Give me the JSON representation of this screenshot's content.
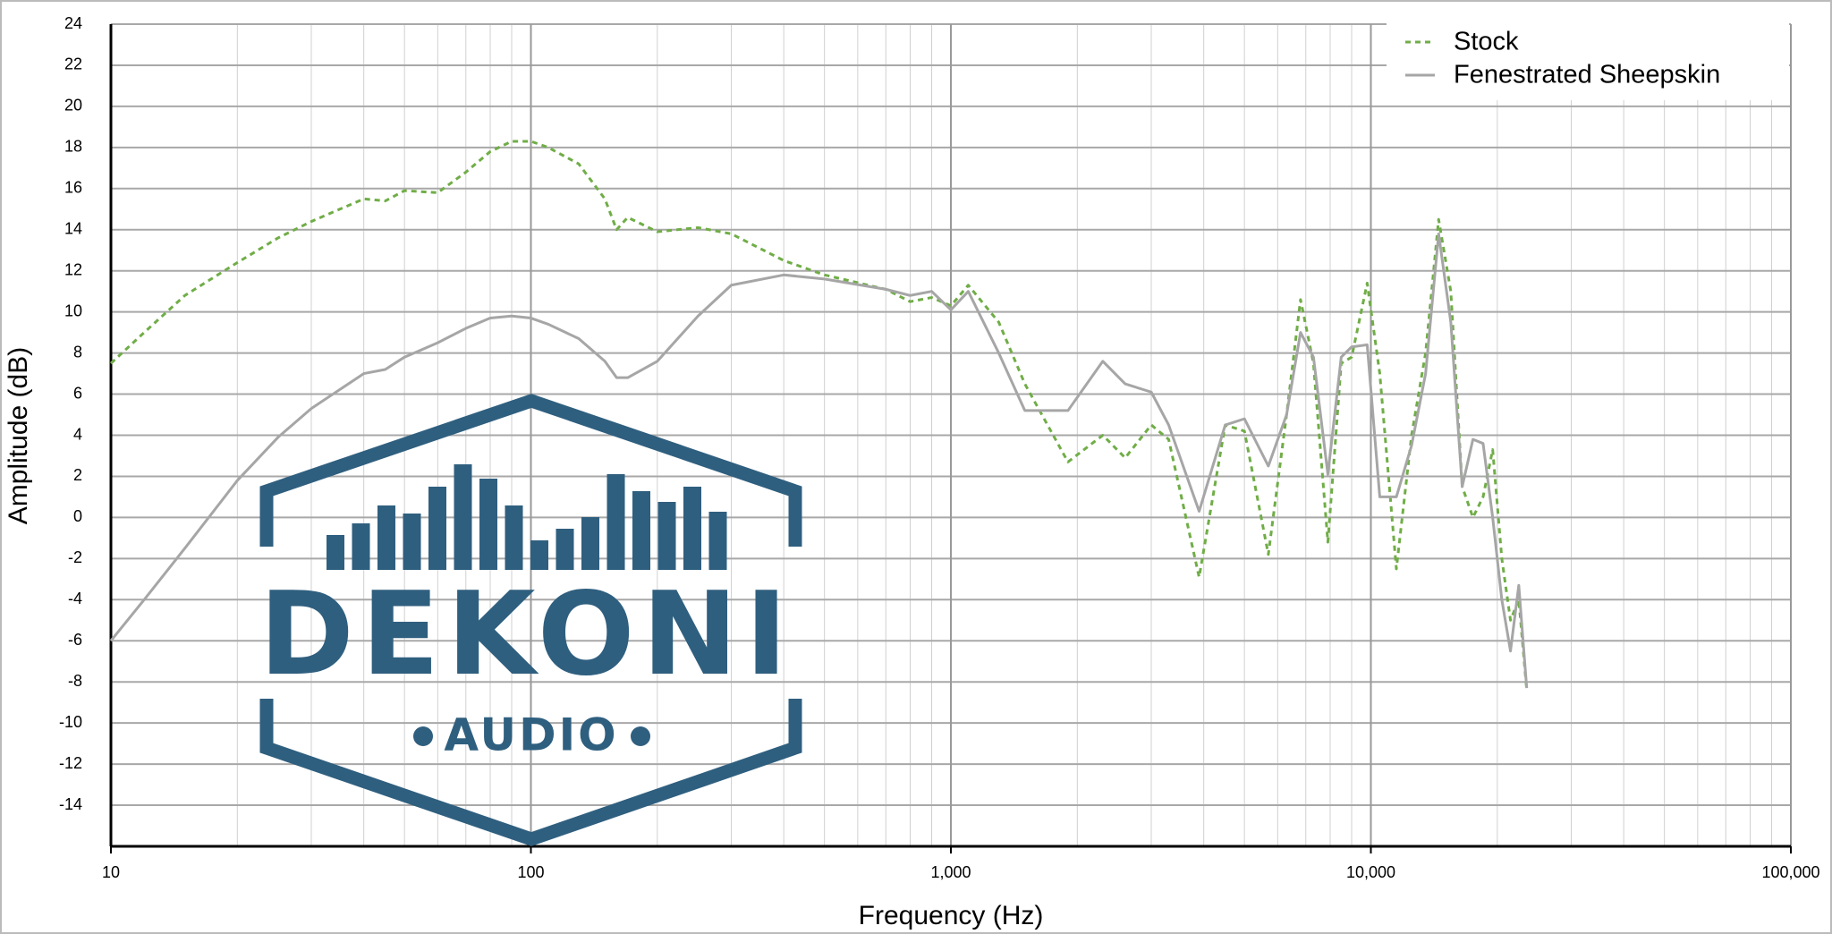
{
  "chart_data": {
    "type": "line",
    "xscale": "log",
    "grid": true,
    "legend": "top-right",
    "x_label": "Frequency (Hz)",
    "y_label": "Amplitude (dB)",
    "xlim": [
      10,
      100000
    ],
    "ylim": [
      -16,
      24
    ],
    "xticks": [
      10,
      100,
      {
        "value": 1000,
        "label": "1,000"
      },
      {
        "value": 10000,
        "label": "10,000"
      },
      {
        "value": 100000,
        "label": "100,000"
      }
    ],
    "yticks": [
      -14,
      -12,
      -10,
      -8,
      -6,
      -4,
      -2,
      0,
      2,
      4,
      6,
      8,
      10,
      12,
      14,
      16,
      18,
      20,
      22,
      24
    ],
    "watermark": {
      "title": "DEKONI",
      "subtitle": "AUDIO"
    },
    "x": [
      10,
      12,
      15,
      20,
      25,
      30,
      40,
      45,
      50,
      60,
      70,
      80,
      90,
      100,
      110,
      130,
      150,
      160,
      170,
      200,
      250,
      300,
      400,
      500,
      700,
      800,
      900,
      1000,
      1100,
      1300,
      1500,
      1900,
      2300,
      2600,
      3000,
      3300,
      3900,
      4500,
      5000,
      5700,
      6300,
      6800,
      7300,
      7900,
      8500,
      9000,
      9800,
      10500,
      11500,
      12500,
      13500,
      14500,
      15500,
      16500,
      17500,
      18500,
      19500,
      20500,
      21500,
      22500,
      23500
    ],
    "series": [
      {
        "name": "Stock",
        "color": "#70ad47",
        "dashed": true,
        "values": [
          7.5,
          9.0,
          10.8,
          12.4,
          13.6,
          14.4,
          15.5,
          15.4,
          15.9,
          15.8,
          16.8,
          17.8,
          18.3,
          18.3,
          18.0,
          17.2,
          15.5,
          14.0,
          14.6,
          13.9,
          14.1,
          13.8,
          12.5,
          11.8,
          11.1,
          10.5,
          10.7,
          10.3,
          11.3,
          9.5,
          6.5,
          2.7,
          4.0,
          2.9,
          4.5,
          3.8,
          -2.9,
          4.5,
          4.2,
          -1.8,
          5.0,
          10.6,
          7.5,
          -1.2,
          7.5,
          7.8,
          11.4,
          7.0,
          -2.5,
          4.0,
          8.0,
          14.5,
          11.0,
          1.5,
          0.0,
          1.0,
          3.3,
          -2.0,
          -5.0,
          -4.0,
          -8.4
        ]
      },
      {
        "name": "Fenestrated Sheepskin",
        "color": "#a6a6a6",
        "dashed": false,
        "values": [
          -6.0,
          -4.0,
          -1.5,
          1.8,
          3.9,
          5.3,
          7.0,
          7.2,
          7.8,
          8.5,
          9.2,
          9.7,
          9.8,
          9.7,
          9.4,
          8.7,
          7.6,
          6.8,
          6.8,
          7.6,
          9.8,
          11.3,
          11.8,
          11.6,
          11.1,
          10.8,
          11.0,
          10.1,
          11.0,
          8.0,
          5.2,
          5.2,
          7.6,
          6.5,
          6.1,
          4.5,
          0.3,
          4.5,
          4.8,
          2.5,
          5.0,
          9.0,
          7.8,
          2.1,
          7.8,
          8.3,
          8.4,
          1.0,
          1.0,
          3.5,
          7.0,
          13.8,
          9.5,
          1.5,
          3.8,
          3.6,
          0.0,
          -4.0,
          -6.5,
          -3.3,
          -8.3
        ]
      }
    ]
  }
}
